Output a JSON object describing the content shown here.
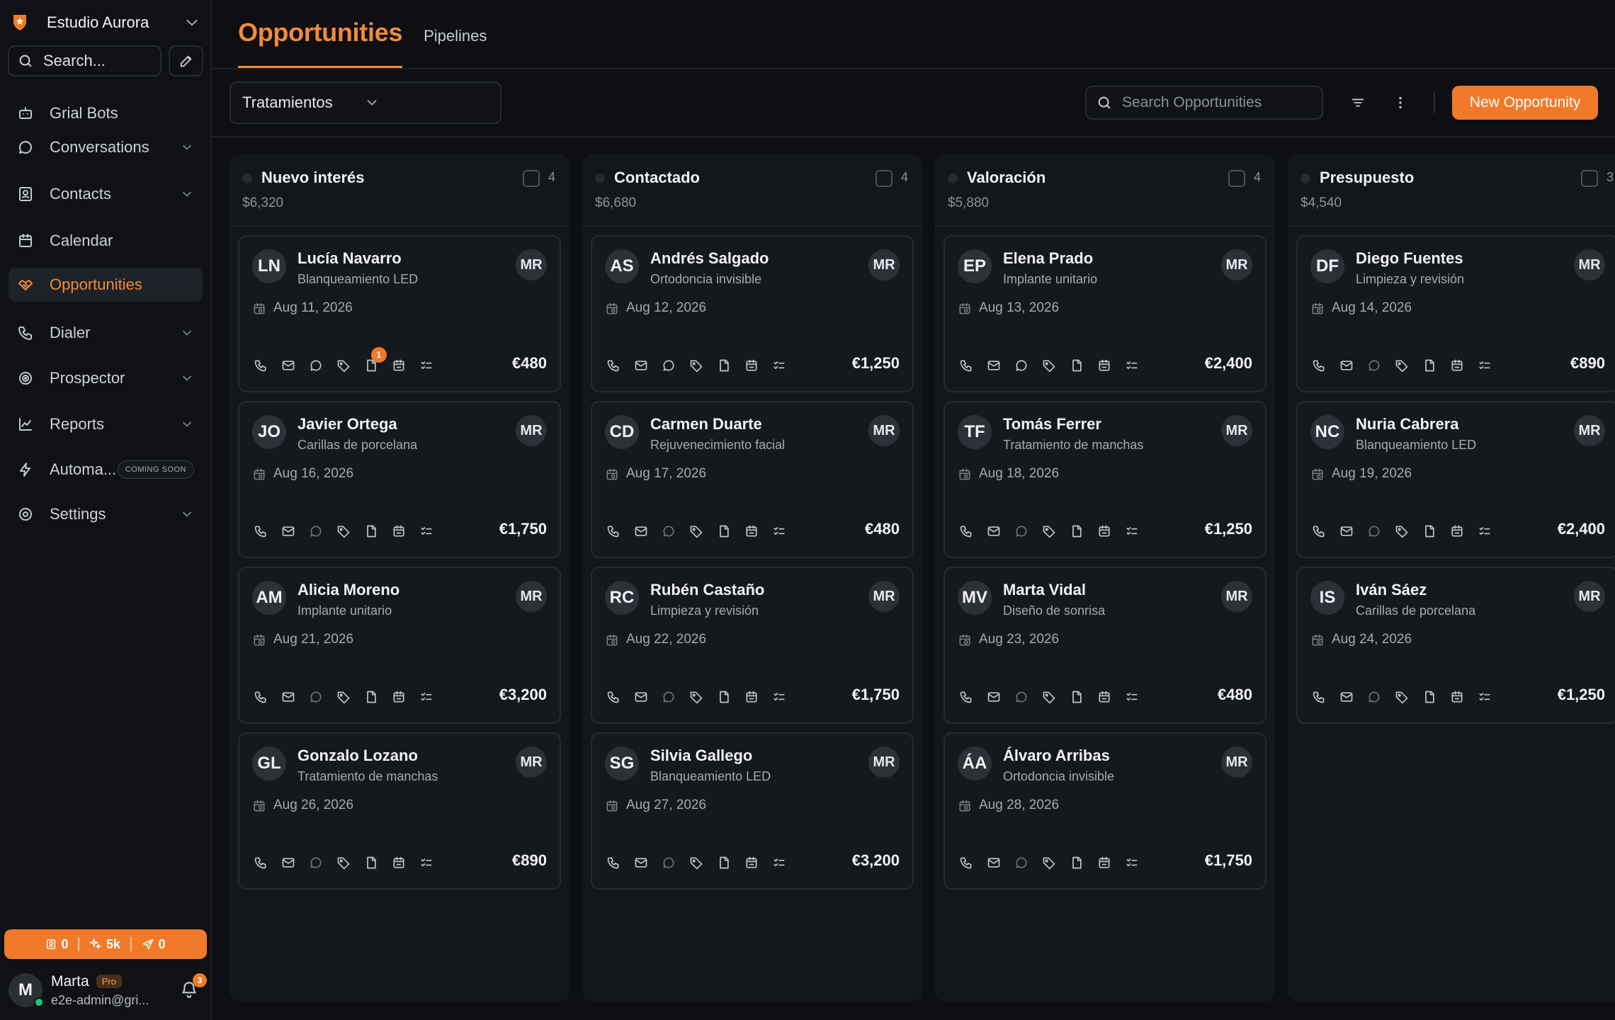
{
  "workspace": {
    "name": "Estudio Aurora"
  },
  "sidebar": {
    "search_label": "Search...",
    "nav": [
      {
        "label": "Grial Bots",
        "icon": "bot-icon",
        "chevron": false
      },
      {
        "label": "Conversations",
        "icon": "chat-icon",
        "chevron": true
      },
      {
        "label": "Contacts",
        "icon": "contacts-icon",
        "chevron": true
      },
      {
        "label": "Calendar",
        "icon": "calendar-icon",
        "chevron": false
      },
      {
        "label": "Opportunities",
        "icon": "handshake-icon",
        "chevron": false,
        "active": true
      },
      {
        "label": "Dialer",
        "icon": "phone-icon",
        "chevron": true
      },
      {
        "label": "Prospector",
        "icon": "target-icon",
        "chevron": true
      },
      {
        "label": "Reports",
        "icon": "chart-icon",
        "chevron": true
      },
      {
        "label": "Automa...",
        "icon": "bolt-icon",
        "chevron": false,
        "badge": "COMING SOON"
      },
      {
        "label": "Settings",
        "icon": "gear-icon",
        "chevron": true
      }
    ],
    "usage": {
      "contacts": "0",
      "credits": "5k",
      "sends": "0"
    },
    "user": {
      "initial": "M",
      "name": "Marta",
      "plan": "Pro",
      "email": "e2e-admin@gri...",
      "notifications": "3"
    }
  },
  "header": {
    "tab_active": "Opportunities",
    "tab_other": "Pipelines",
    "pipeline": "Tratamientos",
    "search_placeholder": "Search Opportunities",
    "new_button": "New Opportunity"
  },
  "colors": {
    "accent": "#f07a2a",
    "background": "#0d0f13",
    "card": "#15181d"
  },
  "columns": [
    {
      "title": "Nuevo interés",
      "total": "$6,320",
      "count": "4",
      "cards": [
        {
          "initials": "LN",
          "name": "Lucía Navarro",
          "service": "Blanqueamiento LED",
          "date": "Aug 11, 2026",
          "amount": "€480",
          "owner": "MR",
          "chat_active": true,
          "note_badge": "1"
        },
        {
          "initials": "JO",
          "name": "Javier Ortega",
          "service": "Carillas de porcelana",
          "date": "Aug 16, 2026",
          "amount": "€1,750",
          "owner": "MR",
          "chat_active": false
        },
        {
          "initials": "AM",
          "name": "Alicia Moreno",
          "service": "Implante unitario",
          "date": "Aug 21, 2026",
          "amount": "€3,200",
          "owner": "MR",
          "chat_active": false
        },
        {
          "initials": "GL",
          "name": "Gonzalo Lozano",
          "service": "Tratamiento de manchas",
          "date": "Aug 26, 2026",
          "amount": "€890",
          "owner": "MR",
          "chat_active": false
        }
      ]
    },
    {
      "title": "Contactado",
      "total": "$6,680",
      "count": "4",
      "cards": [
        {
          "initials": "AS",
          "name": "Andrés Salgado",
          "service": "Ortodoncia invisible",
          "date": "Aug 12, 2026",
          "amount": "€1,250",
          "owner": "MR",
          "chat_active": true
        },
        {
          "initials": "CD",
          "name": "Carmen Duarte",
          "service": "Rejuvenecimiento facial",
          "date": "Aug 17, 2026",
          "amount": "€480",
          "owner": "MR",
          "chat_active": false
        },
        {
          "initials": "RC",
          "name": "Rubén Castaño",
          "service": "Limpieza y revisión",
          "date": "Aug 22, 2026",
          "amount": "€1,750",
          "owner": "MR",
          "chat_active": false
        },
        {
          "initials": "SG",
          "name": "Silvia Gallego",
          "service": "Blanqueamiento LED",
          "date": "Aug 27, 2026",
          "amount": "€3,200",
          "owner": "MR",
          "chat_active": false
        }
      ]
    },
    {
      "title": "Valoración",
      "total": "$5,880",
      "count": "4",
      "cards": [
        {
          "initials": "EP",
          "name": "Elena Prado",
          "service": "Implante unitario",
          "date": "Aug 13, 2026",
          "amount": "€2,400",
          "owner": "MR",
          "chat_active": true
        },
        {
          "initials": "TF",
          "name": "Tomás Ferrer",
          "service": "Tratamiento de manchas",
          "date": "Aug 18, 2026",
          "amount": "€1,250",
          "owner": "MR",
          "chat_active": false
        },
        {
          "initials": "MV",
          "name": "Marta Vidal",
          "service": "Diseño de sonrisa",
          "date": "Aug 23, 2026",
          "amount": "€480",
          "owner": "MR",
          "chat_active": false
        },
        {
          "initials": "ÁA",
          "name": "Álvaro Arribas",
          "service": "Ortodoncia invisible",
          "date": "Aug 28, 2026",
          "amount": "€1,750",
          "owner": "MR",
          "chat_active": false
        }
      ]
    },
    {
      "title": "Presupuesto",
      "total": "$4,540",
      "count": "3",
      "cards": [
        {
          "initials": "DF",
          "name": "Diego Fuentes",
          "service": "Limpieza y revisión",
          "date": "Aug 14, 2026",
          "amount": "€890",
          "owner": "MR",
          "chat_active": false
        },
        {
          "initials": "NC",
          "name": "Nuria Cabrera",
          "service": "Blanqueamiento LED",
          "date": "Aug 19, 2026",
          "amount": "€2,400",
          "owner": "MR",
          "chat_active": false
        },
        {
          "initials": "IS",
          "name": "Iván Sáez",
          "service": "Carillas de porcelana",
          "date": "Aug 24, 2026",
          "amount": "€1,250",
          "owner": "MR",
          "chat_active": false
        }
      ]
    }
  ]
}
